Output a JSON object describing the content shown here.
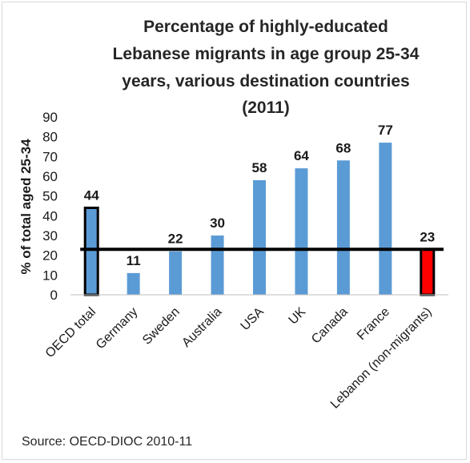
{
  "chart_data": {
    "type": "bar",
    "title_lines": [
      "Percentage of highly-educated",
      "Lebanese migrants in age group 25-34",
      "years, various destination countries",
      "(2011)"
    ],
    "ylabel": "% of total aged 25-34",
    "xlabel": "",
    "ylim": [
      0,
      90
    ],
    "yticks": [
      0,
      10,
      20,
      30,
      40,
      50,
      60,
      70,
      80,
      90
    ],
    "categories": [
      "OECD total",
      "Germany",
      "Sweden",
      "Australia",
      "USA",
      "UK",
      "Canada",
      "France",
      "Lebanon (non-migrants)"
    ],
    "values": [
      44,
      11,
      22,
      30,
      58,
      64,
      68,
      77,
      23
    ],
    "data_labels": [
      "44",
      "11",
      "22",
      "30",
      "58",
      "64",
      "68",
      "77",
      "23"
    ],
    "bar_colors": [
      "#5b9bd5",
      "#5b9bd5",
      "#5b9bd5",
      "#5b9bd5",
      "#5b9bd5",
      "#5b9bd5",
      "#5b9bd5",
      "#5b9bd5",
      "#ff0000"
    ],
    "outlined_bars": [
      "OECD total",
      "Lebanon (non-migrants)"
    ],
    "reference_line_value": 23,
    "reference_line_color": "#000000",
    "grid": false,
    "source": "Source: OECD-DIOC 2010-11"
  }
}
